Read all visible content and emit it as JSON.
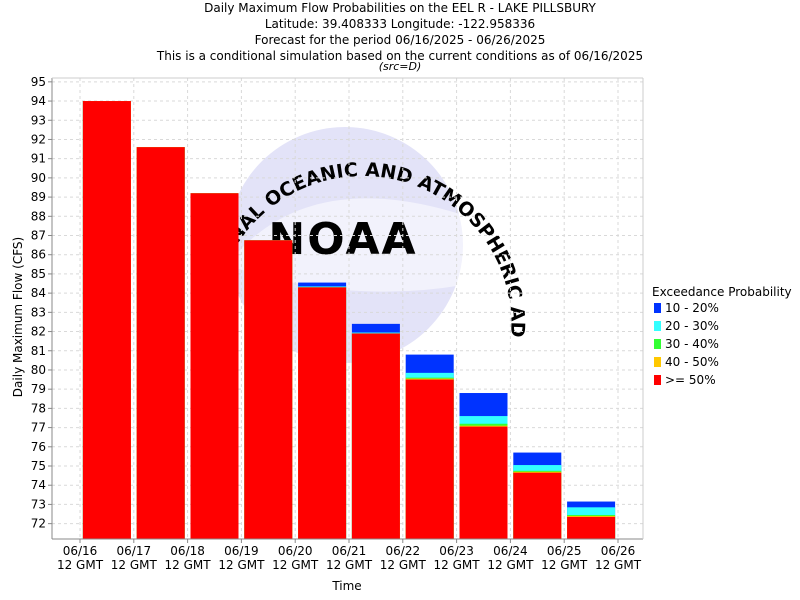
{
  "chart_data": {
    "type": "bar",
    "title": [
      "Daily Maximum Flow Probabilities on the EEL R - LAKE PILLSBURY",
      "Latitude: 39.408333 Longitude: -122.958336",
      "Forecast for the period 06/16/2025 - 06/26/2025",
      "This is a conditional simulation based on the current conditions as of 06/16/2025"
    ],
    "subtitle": "(src=D)",
    "xlabel": "Time",
    "ylabel": "Daily Maximum Flow (CFS)",
    "ylim": [
      71.2,
      95.2
    ],
    "yticks": [
      72,
      73,
      74,
      75,
      76,
      77,
      78,
      79,
      80,
      81,
      82,
      83,
      84,
      85,
      86,
      87,
      88,
      89,
      90,
      91,
      92,
      93,
      94,
      95
    ],
    "grid": true,
    "legend_title": "Exceedance Probability",
    "legend_position": "right",
    "xticks": [
      {
        "date": "06/16",
        "time": "12 GMT"
      },
      {
        "date": "06/17",
        "time": "12 GMT"
      },
      {
        "date": "06/18",
        "time": "12 GMT"
      },
      {
        "date": "06/19",
        "time": "12 GMT"
      },
      {
        "date": "06/20",
        "time": "12 GMT"
      },
      {
        "date": "06/21",
        "time": "12 GMT"
      },
      {
        "date": "06/22",
        "time": "12 GMT"
      },
      {
        "date": "06/23",
        "time": "12 GMT"
      },
      {
        "date": "06/24",
        "time": "12 GMT"
      },
      {
        "date": "06/25",
        "time": "12 GMT"
      },
      {
        "date": "06/26",
        "time": "12 GMT"
      }
    ],
    "categories": [
      "06/16",
      "06/17",
      "06/18",
      "06/19",
      "06/20",
      "06/21",
      "06/22",
      "06/23",
      "06/24",
      "06/25"
    ],
    "series": [
      {
        "name": ">= 50%",
        "color": "#ff0000",
        "values": [
          94.0,
          91.6,
          89.2,
          86.75,
          84.3,
          81.9,
          79.5,
          77.05,
          74.65,
          72.35
        ]
      },
      {
        "name": "40 - 50%",
        "color": "#ffc800",
        "values": [
          94.0,
          91.6,
          89.2,
          86.75,
          84.3,
          81.9,
          79.55,
          77.1,
          74.7,
          72.4
        ]
      },
      {
        "name": "30 - 40%",
        "color": "#33ff33",
        "values": [
          94.0,
          91.6,
          89.2,
          86.75,
          84.3,
          81.9,
          79.6,
          77.2,
          74.75,
          72.45
        ]
      },
      {
        "name": "20 - 30%",
        "color": "#33ffff",
        "values": [
          94.0,
          91.6,
          89.2,
          86.75,
          84.35,
          81.95,
          79.85,
          77.6,
          75.05,
          72.85
        ]
      },
      {
        "name": "10 - 20%",
        "color": "#0033ff",
        "values": [
          94.0,
          91.6,
          89.2,
          86.75,
          84.55,
          82.4,
          80.8,
          78.8,
          75.7,
          73.15
        ]
      }
    ],
    "legend_order": [
      "10 - 20%",
      "20 - 30%",
      "30 - 40%",
      "40 - 50%",
      ">= 50%"
    ]
  },
  "watermark": {
    "logo_text": "NOAA",
    "ring_text": "NATIONAL OCEANIC AND ATMOSPHERIC ADMINISTRATION",
    "color": "#d8d8f2"
  }
}
